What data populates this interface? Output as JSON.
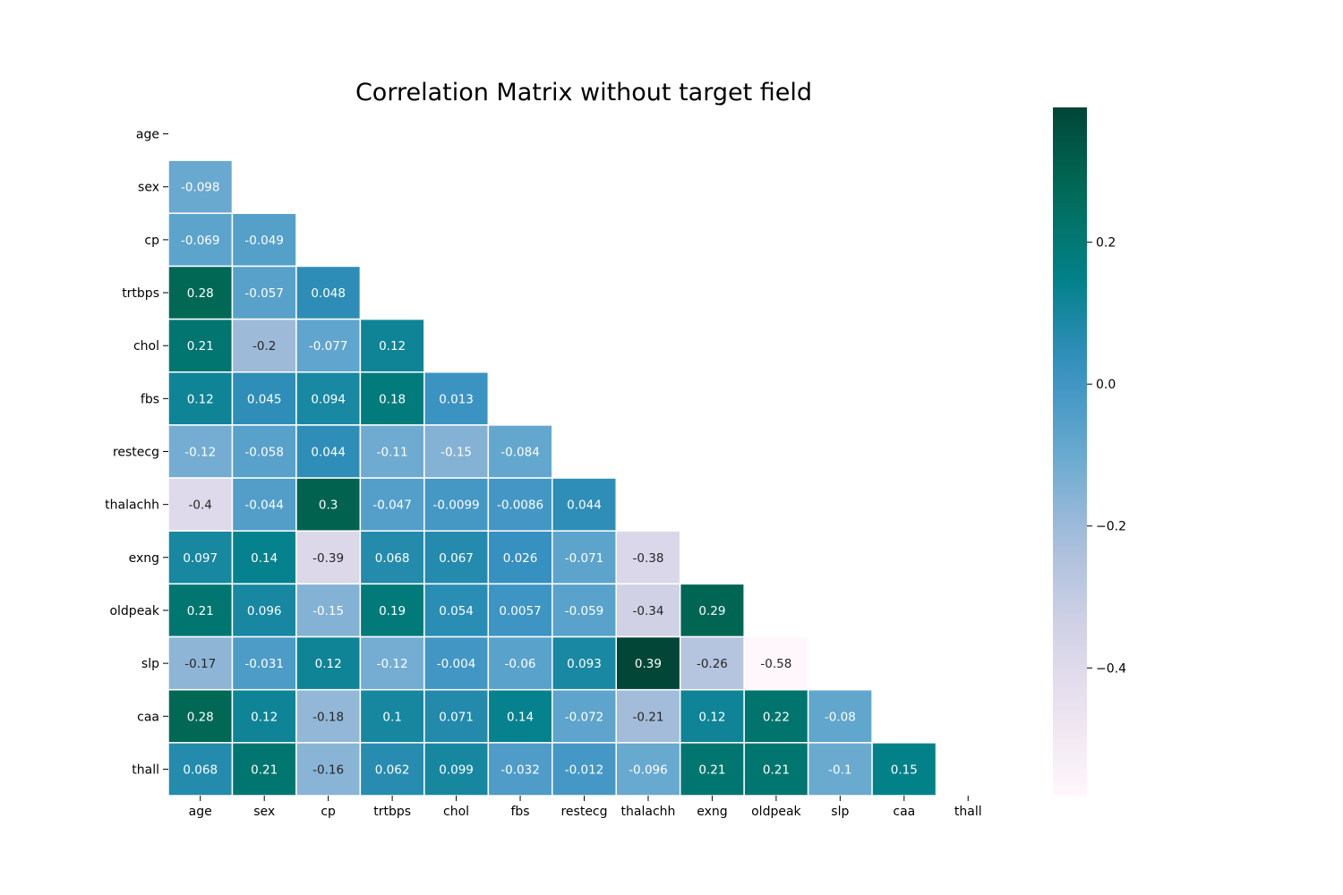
{
  "chart_data": {
    "type": "heatmap",
    "title": "Correlation Matrix without target field",
    "xlabel": "",
    "ylabel": "",
    "variables": [
      "age",
      "sex",
      "cp",
      "trtbps",
      "chol",
      "fbs",
      "restecg",
      "thalachh",
      "exng",
      "oldpeak",
      "slp",
      "caa",
      "thall"
    ],
    "mask": "upper-triangle-including-diagonal",
    "lower_triangle": [
      [],
      [
        "-0.098"
      ],
      [
        "-0.069",
        "-0.049"
      ],
      [
        "0.28",
        "-0.057",
        "0.048"
      ],
      [
        "0.21",
        "-0.2",
        "-0.077",
        "0.12"
      ],
      [
        "0.12",
        "0.045",
        "0.094",
        "0.18",
        "0.013"
      ],
      [
        "-0.12",
        "-0.058",
        "0.044",
        "-0.11",
        "-0.15",
        "-0.084"
      ],
      [
        "-0.4",
        "-0.044",
        "0.3",
        "-0.047",
        "-0.0099",
        "-0.0086",
        "0.044"
      ],
      [
        "0.097",
        "0.14",
        "-0.39",
        "0.068",
        "0.067",
        "0.026",
        "-0.071",
        "-0.38"
      ],
      [
        "0.21",
        "0.096",
        "-0.15",
        "0.19",
        "0.054",
        "0.0057",
        "-0.059",
        "-0.34",
        "0.29"
      ],
      [
        "-0.17",
        "-0.031",
        "0.12",
        "-0.12",
        "-0.004",
        "-0.06",
        "0.093",
        "0.39",
        "-0.26",
        "-0.58"
      ],
      [
        "0.28",
        "0.12",
        "-0.18",
        "0.1",
        "0.071",
        "0.14",
        "-0.072",
        "-0.21",
        "0.12",
        "0.22",
        "-0.08"
      ],
      [
        "0.068",
        "0.21",
        "-0.16",
        "0.062",
        "0.099",
        "-0.032",
        "-0.012",
        "-0.096",
        "0.21",
        "0.21",
        "-0.1",
        "0.15"
      ]
    ],
    "colormap": "PuBuGn",
    "colorbar": {
      "vmin": -0.58,
      "vmax": 0.39,
      "ticks": [
        0.2,
        0.0,
        -0.2,
        -0.4
      ],
      "tick_labels": [
        "0.2",
        "0.0",
        "−0.2",
        "−0.4"
      ],
      "placement": "right"
    },
    "grid": false,
    "cell_border_color": "#ffffff"
  }
}
